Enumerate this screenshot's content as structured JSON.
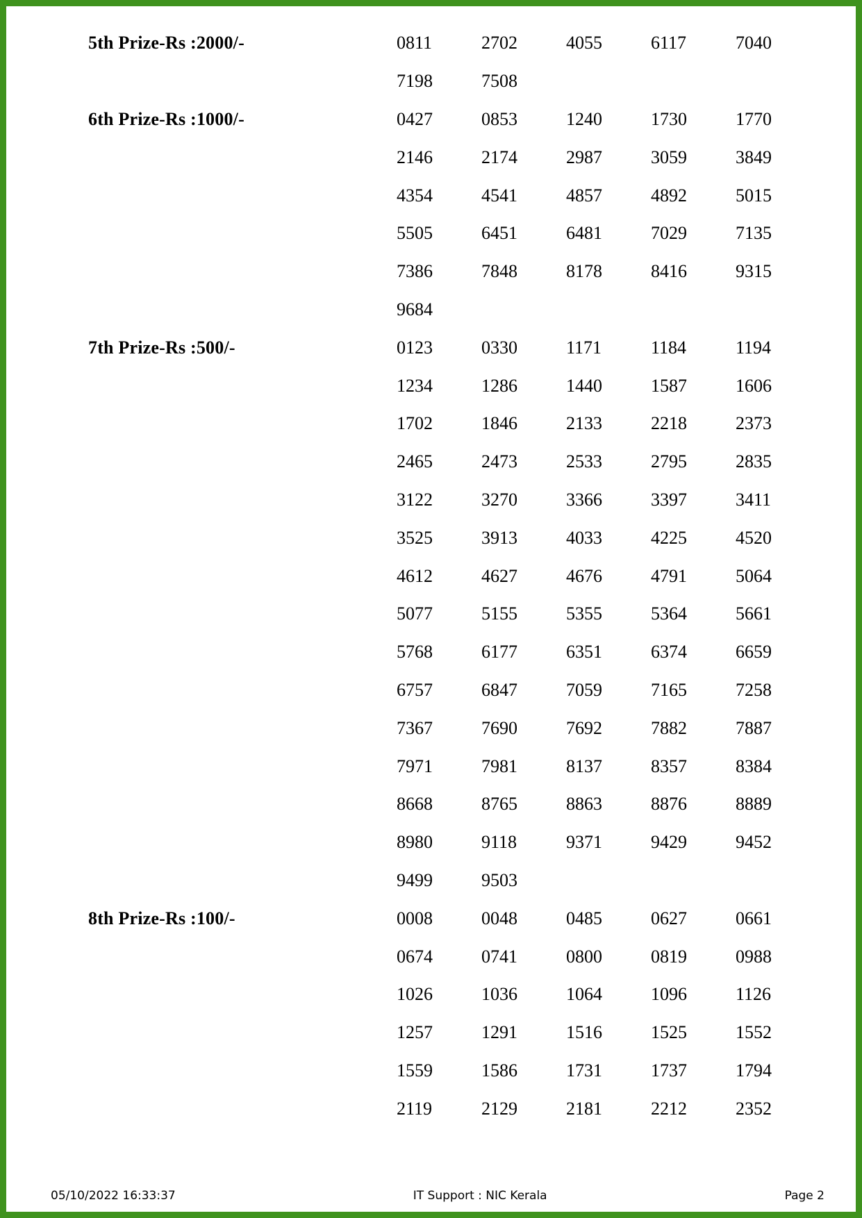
{
  "page": {
    "border_color": "#3f921e",
    "background_color": "#ffffff"
  },
  "results": {
    "sections": [
      {
        "label": "5th Prize-Rs :2000/-",
        "rows": [
          [
            "0811",
            "2702",
            "4055",
            "6117",
            "7040"
          ],
          [
            "7198",
            "7508"
          ]
        ]
      },
      {
        "label": "6th Prize-Rs :1000/-",
        "rows": [
          [
            "0427",
            "0853",
            "1240",
            "1730",
            "1770"
          ],
          [
            "2146",
            "2174",
            "2987",
            "3059",
            "3849"
          ],
          [
            "4354",
            "4541",
            "4857",
            "4892",
            "5015"
          ],
          [
            "5505",
            "6451",
            "6481",
            "7029",
            "7135"
          ],
          [
            "7386",
            "7848",
            "8178",
            "8416",
            "9315"
          ],
          [
            "9684"
          ]
        ]
      },
      {
        "label": "7th Prize-Rs :500/-",
        "rows": [
          [
            "0123",
            "0330",
            "1171",
            "1184",
            "1194"
          ],
          [
            "1234",
            "1286",
            "1440",
            "1587",
            "1606"
          ],
          [
            "1702",
            "1846",
            "2133",
            "2218",
            "2373"
          ],
          [
            "2465",
            "2473",
            "2533",
            "2795",
            "2835"
          ],
          [
            "3122",
            "3270",
            "3366",
            "3397",
            "3411"
          ],
          [
            "3525",
            "3913",
            "4033",
            "4225",
            "4520"
          ],
          [
            "4612",
            "4627",
            "4676",
            "4791",
            "5064"
          ],
          [
            "5077",
            "5155",
            "5355",
            "5364",
            "5661"
          ],
          [
            "5768",
            "6177",
            "6351",
            "6374",
            "6659"
          ],
          [
            "6757",
            "6847",
            "7059",
            "7165",
            "7258"
          ],
          [
            "7367",
            "7690",
            "7692",
            "7882",
            "7887"
          ],
          [
            "7971",
            "7981",
            "8137",
            "8357",
            "8384"
          ],
          [
            "8668",
            "8765",
            "8863",
            "8876",
            "8889"
          ],
          [
            "8980",
            "9118",
            "9371",
            "9429",
            "9452"
          ],
          [
            "9499",
            "9503"
          ]
        ]
      },
      {
        "label": "8th Prize-Rs :100/-",
        "rows": [
          [
            "0008",
            "0048",
            "0485",
            "0627",
            "0661"
          ],
          [
            "0674",
            "0741",
            "0800",
            "0819",
            "0988"
          ],
          [
            "1026",
            "1036",
            "1064",
            "1096",
            "1126"
          ],
          [
            "1257",
            "1291",
            "1516",
            "1525",
            "1552"
          ],
          [
            "1559",
            "1586",
            "1731",
            "1737",
            "1794"
          ],
          [
            "2119",
            "2129",
            "2181",
            "2212",
            "2352"
          ]
        ]
      }
    ]
  },
  "footer": {
    "timestamp": "05/10/2022 16:33:37",
    "support": "IT Support : NIC Kerala",
    "page_label": "Page 2"
  }
}
